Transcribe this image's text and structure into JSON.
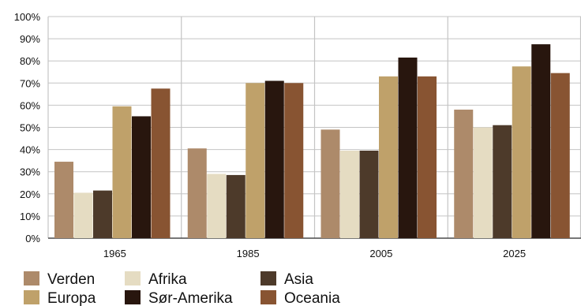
{
  "chart_data": {
    "type": "bar",
    "categories": [
      "1965",
      "1985",
      "2005",
      "2025"
    ],
    "series": [
      {
        "name": "Verden",
        "color": "#ad8a6a",
        "values": [
          34.5,
          40.5,
          49,
          58
        ]
      },
      {
        "name": "Afrika",
        "color": "#e5dcc2",
        "values": [
          20.5,
          29,
          39.5,
          50
        ]
      },
      {
        "name": "Asia",
        "color": "#4d3a2a",
        "values": [
          21.5,
          28.5,
          39.5,
          51
        ]
      },
      {
        "name": "Europa",
        "color": "#bfa16a",
        "values": [
          59.5,
          70,
          73,
          77.5
        ]
      },
      {
        "name": "Sør-Amerika",
        "color": "#28160e",
        "values": [
          55,
          71,
          81.5,
          87.5
        ]
      },
      {
        "name": "Oceania",
        "color": "#885432",
        "values": [
          67.5,
          70,
          73,
          74.5
        ]
      }
    ],
    "ylim": [
      0,
      100
    ],
    "yticks": [
      "0%",
      "10%",
      "20%",
      "30%",
      "40%",
      "50%",
      "60%",
      "70%",
      "80%",
      "90%",
      "100%"
    ],
    "grid": true,
    "legend_position": "bottom",
    "title": "",
    "xlabel": "",
    "ylabel": ""
  }
}
